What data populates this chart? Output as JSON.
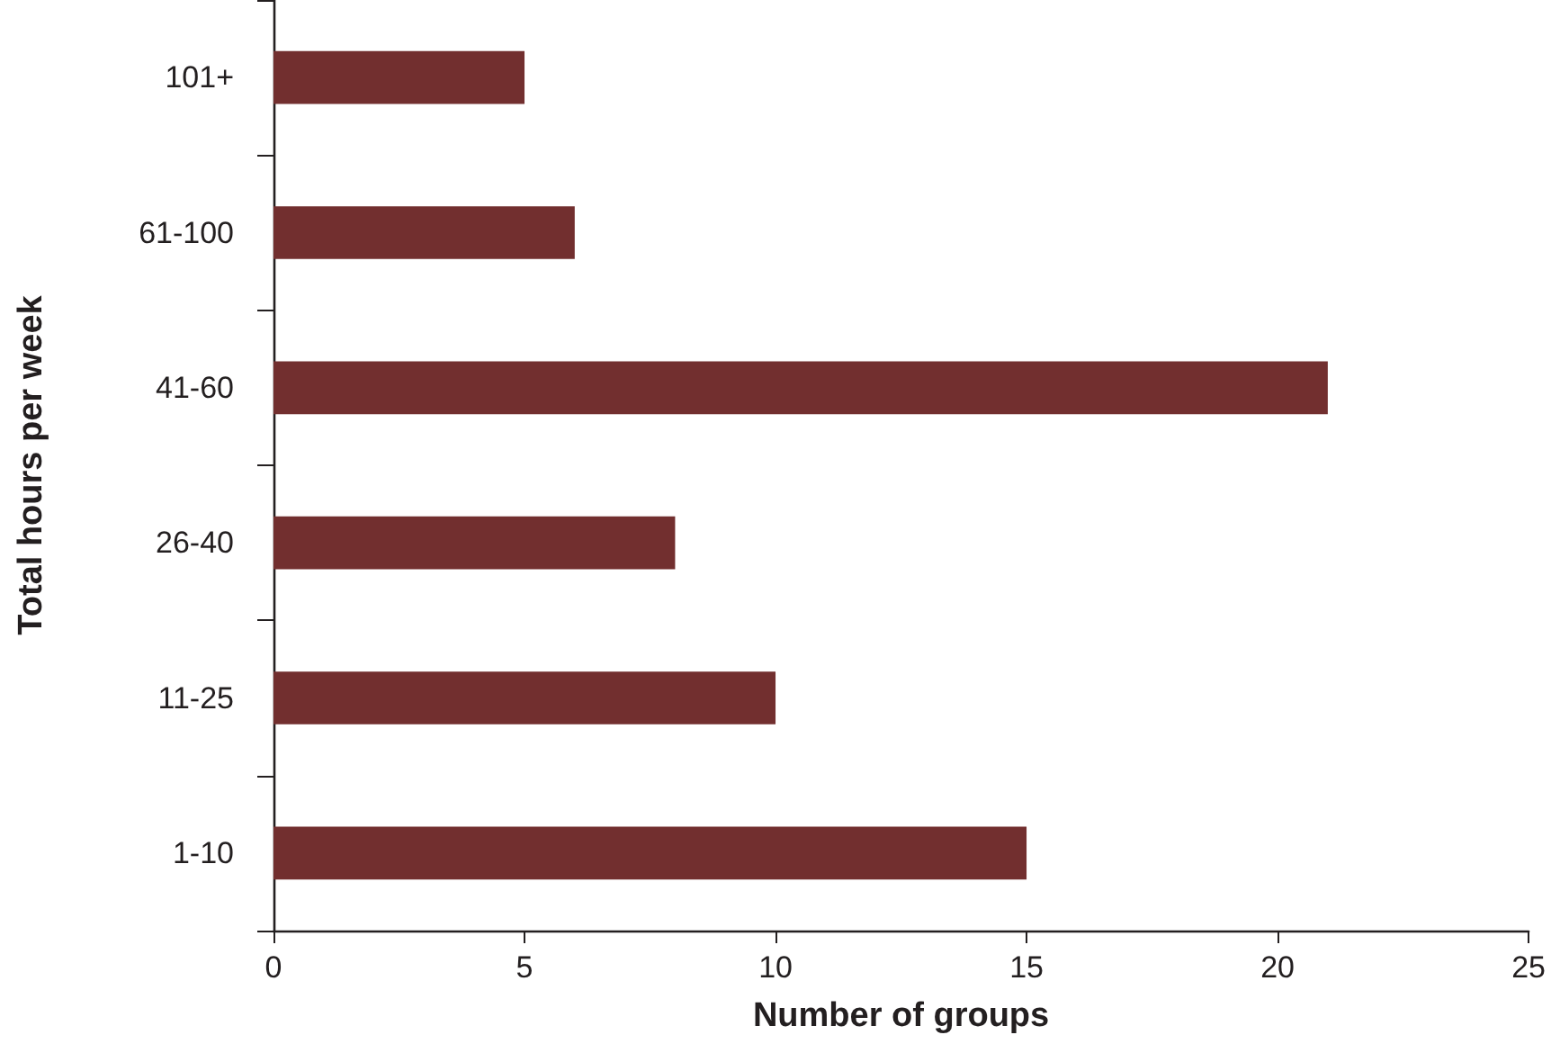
{
  "chart_data": {
    "type": "bar",
    "orientation": "horizontal",
    "xlabel": "Number of groups",
    "ylabel": "Total hours per week",
    "categories": [
      "101+",
      "61-100",
      "41-60",
      "26-40",
      "11-25",
      "1-10"
    ],
    "values": [
      5,
      6,
      21,
      8,
      10,
      15
    ],
    "color": "#722f2f",
    "xlim": [
      0,
      25
    ],
    "xticks": [
      0,
      5,
      10,
      15,
      20,
      25
    ],
    "grid": false
  }
}
